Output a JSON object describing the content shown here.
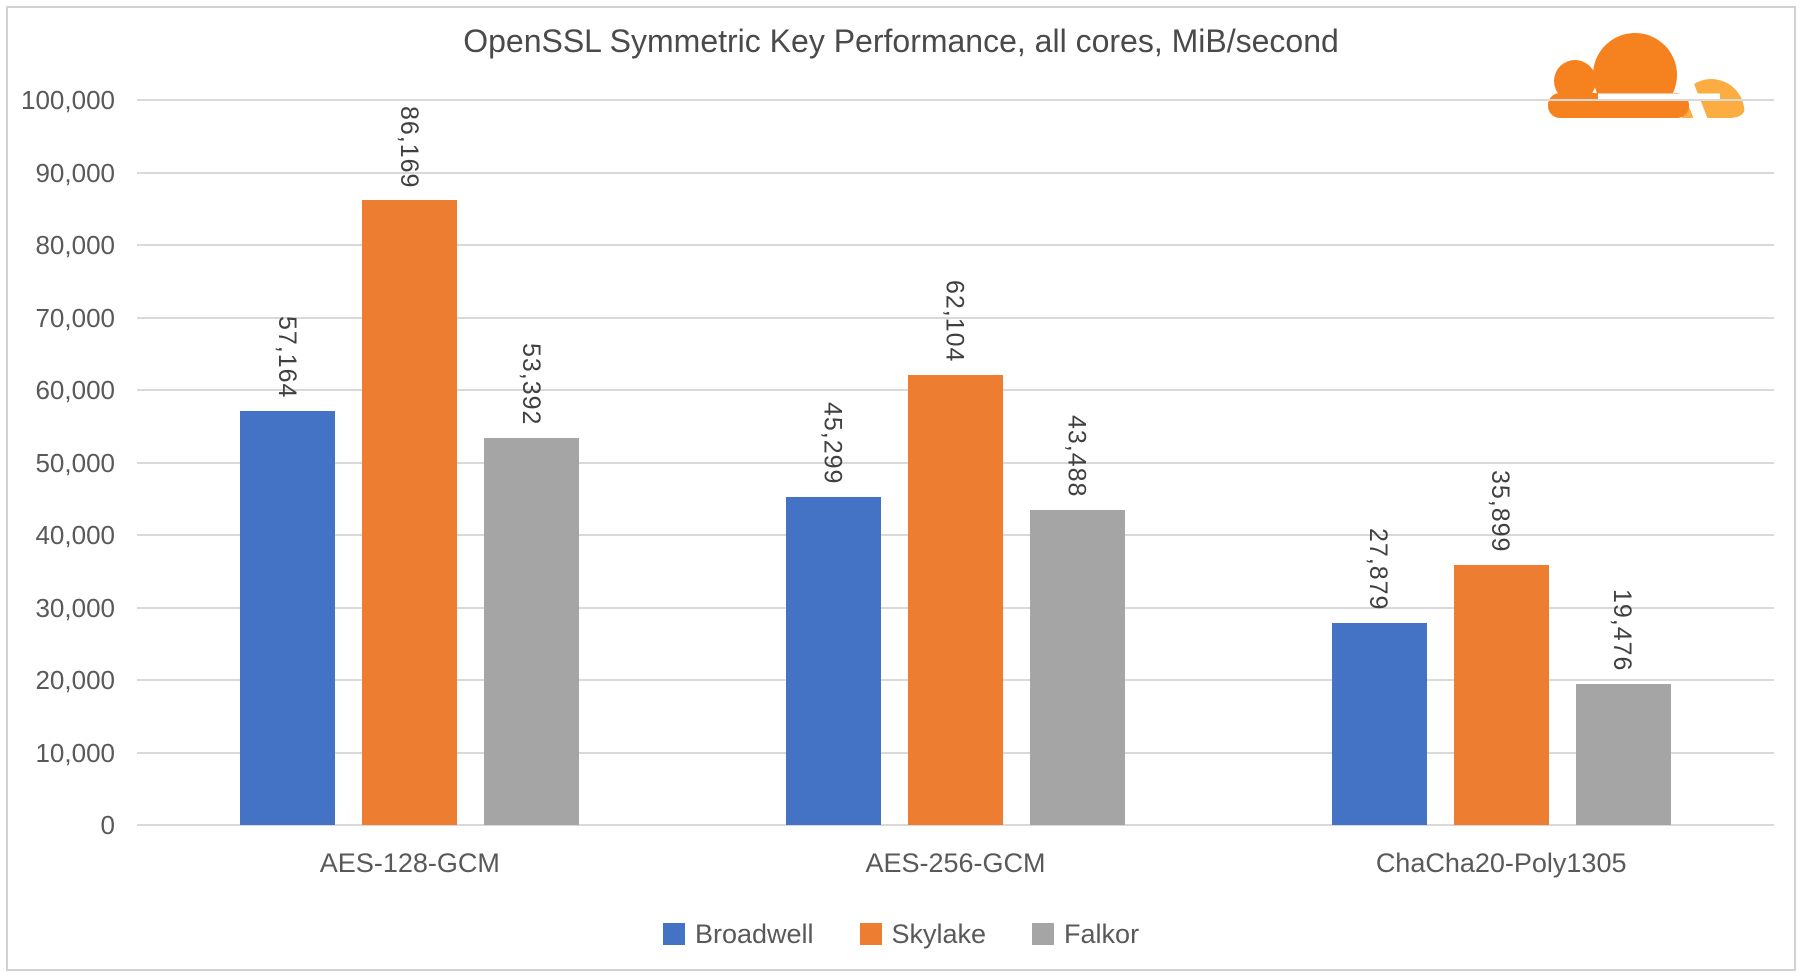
{
  "title": "OpenSSL Symmetric Key Performance, all cores, MiB/second",
  "logo": {
    "name": "cloudflare-logo",
    "primary_color": "#F6821F",
    "secondary_color": "#FBAD41"
  },
  "chart_data": {
    "type": "bar",
    "title": "OpenSSL Symmetric Key Performance, all cores, MiB/second",
    "categories": [
      "AES-128-GCM",
      "AES-256-GCM",
      "ChaCha20-Poly1305"
    ],
    "series": [
      {
        "name": "Broadwell",
        "color": "#4472C4",
        "values": [
          57164,
          45299,
          27879
        ],
        "value_labels": [
          "57,164",
          "45,299",
          "27,879"
        ]
      },
      {
        "name": "Skylake",
        "color": "#ED7D31",
        "values": [
          86169,
          62104,
          35899
        ],
        "value_labels": [
          "86,169",
          "62,104",
          "35,899"
        ]
      },
      {
        "name": "Falkor",
        "color": "#A5A5A5",
        "values": [
          53392,
          43488,
          19476
        ],
        "value_labels": [
          "53,392",
          "43,488",
          "19,476"
        ]
      }
    ],
    "xlabel": "",
    "ylabel": "",
    "ylim": [
      0,
      100000
    ],
    "ytick_step": 10000,
    "ytick_labels": [
      "0",
      "10,000",
      "20,000",
      "30,000",
      "40,000",
      "50,000",
      "60,000",
      "70,000",
      "80,000",
      "90,000",
      "100,000"
    ],
    "grid": true,
    "data_label_rotation_deg": 90,
    "legend_position": "bottom",
    "legend": [
      "Broadwell",
      "Skylake",
      "Falkor"
    ]
  },
  "colors": {
    "gridline": "#D9D9D9",
    "axis_text": "#595959",
    "data_label_text": "#404040",
    "title_text": "#4A4A4A",
    "frame_border": "#D2D2D2",
    "background": "#FFFFFF"
  }
}
